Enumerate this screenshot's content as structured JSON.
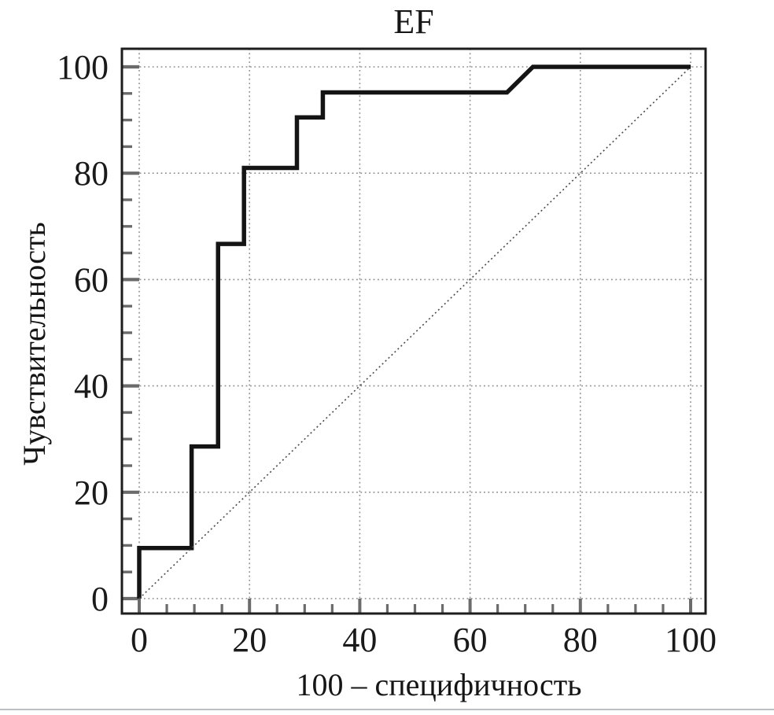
{
  "chart_data": {
    "type": "line",
    "title": "EF",
    "xlabel": "100 – специфичность",
    "ylabel": "Чувствительность",
    "xlim": [
      0,
      100
    ],
    "ylim": [
      0,
      100
    ],
    "x_ticks": [
      0,
      20,
      40,
      60,
      80,
      100
    ],
    "y_ticks": [
      0,
      20,
      40,
      60,
      80,
      100
    ],
    "minor_tick_step": 5,
    "grid": "dotted",
    "legend": "none",
    "series": [
      {
        "name": "ROC curve EF",
        "style": "solid-bold",
        "color": "#141414",
        "x": [
          0,
          0,
          9.5,
          9.5,
          14.3,
          14.3,
          19,
          19,
          28.6,
          28.6,
          33.3,
          33.3,
          66.7,
          71.4,
          100
        ],
        "y": [
          0,
          9.5,
          9.5,
          28.6,
          28.6,
          66.7,
          66.7,
          81,
          81,
          90.5,
          90.5,
          95.2,
          95.2,
          100,
          100
        ]
      },
      {
        "name": "reference diagonal",
        "style": "dotted",
        "color": "#4a4a4a",
        "x": [
          0,
          100
        ],
        "y": [
          0,
          100
        ]
      }
    ],
    "colors": {
      "frame": "#1d1d1d",
      "grid": "#8f8f8f",
      "ticks": "#6b6b6b",
      "text": "#1a1a1a"
    }
  }
}
